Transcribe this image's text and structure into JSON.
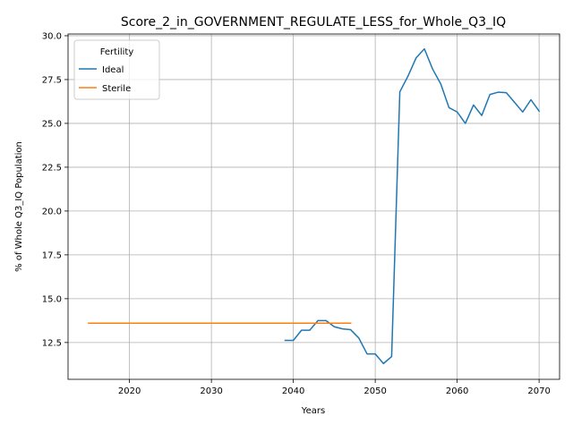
{
  "chart_data": {
    "type": "line",
    "title": "Score_2_in_GOVERNMENT_REGULATE_LESS_for_Whole_Q3_IQ",
    "xlabel": "Years",
    "ylabel": "% of Whole Q3_IQ Population",
    "xlim": [
      2012.5,
      2072.5
    ],
    "ylim": [
      10.4,
      30.1
    ],
    "xticks": [
      2020,
      2030,
      2040,
      2050,
      2060,
      2070
    ],
    "yticks": [
      12.5,
      15.0,
      17.5,
      20.0,
      22.5,
      25.0,
      27.5,
      30.0
    ],
    "ytick_labels": [
      "12.5",
      "15.0",
      "17.5",
      "20.0",
      "22.5",
      "25.0",
      "27.5",
      "30.0"
    ],
    "grid": true,
    "legend": {
      "title": "Fertility",
      "placement": "top-left"
    },
    "series": [
      {
        "name": "Ideal",
        "color": "#1f77b4",
        "x": [
          2039,
          2040,
          2041,
          2042,
          2043,
          2044,
          2045,
          2046,
          2047,
          2048,
          2049,
          2050,
          2051,
          2052,
          2053,
          2054,
          2055,
          2056,
          2057,
          2058,
          2059,
          2060,
          2061,
          2062,
          2063,
          2064,
          2065,
          2066,
          2067,
          2068,
          2069,
          2070
        ],
        "y": [
          12.62,
          12.62,
          13.2,
          13.2,
          13.75,
          13.75,
          13.4,
          13.28,
          13.23,
          12.75,
          11.85,
          11.85,
          11.3,
          11.7,
          26.8,
          27.7,
          28.75,
          29.25,
          28.1,
          27.25,
          25.9,
          25.65,
          25.0,
          26.05,
          25.45,
          26.65,
          26.78,
          26.75,
          26.2,
          25.65,
          26.35,
          25.7
        ]
      },
      {
        "name": "Sterile",
        "color": "#ff7f0e",
        "x": [
          2015,
          2047
        ],
        "y": [
          13.6,
          13.6
        ]
      }
    ]
  }
}
